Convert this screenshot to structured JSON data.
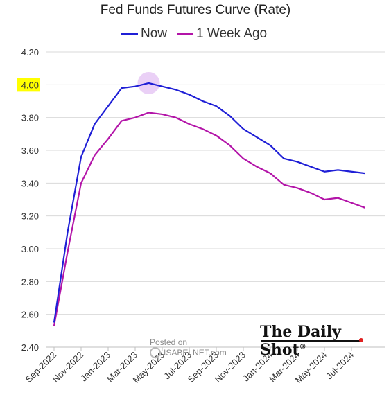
{
  "chart_data": {
    "type": "line",
    "title": "Fed Funds Futures Curve (Rate)",
    "x": [
      "Sep-2022",
      "Oct-2022",
      "Nov-2022",
      "Dec-2022",
      "Jan-2023",
      "Feb-2023",
      "Mar-2023",
      "Apr-2023",
      "May-2023",
      "Jun-2023",
      "Jul-2023",
      "Aug-2023",
      "Sep-2023",
      "Oct-2023",
      "Nov-2023",
      "Dec-2023",
      "Jan-2024",
      "Feb-2024",
      "Mar-2024",
      "Apr-2024",
      "May-2024",
      "Jun-2024",
      "Jul-2024",
      "Aug-2024"
    ],
    "x_tick_labels": [
      "Sep-2022",
      "Nov-2022",
      "Jan-2023",
      "Mar-2023",
      "May-2023",
      "Jul-2023",
      "Sep-2023",
      "Nov-2023",
      "Jan-2024",
      "Mar-2024",
      "May-2024",
      "Jul-2024"
    ],
    "series": [
      {
        "name": "Now",
        "color": "#1f1fd6",
        "values": [
          2.55,
          3.1,
          3.56,
          3.76,
          3.87,
          3.98,
          3.99,
          4.01,
          3.99,
          3.97,
          3.94,
          3.9,
          3.87,
          3.81,
          3.73,
          3.68,
          3.63,
          3.55,
          3.53,
          3.5,
          3.47,
          3.48,
          3.47,
          3.46
        ]
      },
      {
        "name": "1 Week Ago",
        "color": "#b314a8",
        "values": [
          2.53,
          2.98,
          3.4,
          3.57,
          3.67,
          3.78,
          3.8,
          3.83,
          3.82,
          3.8,
          3.76,
          3.73,
          3.69,
          3.63,
          3.55,
          3.5,
          3.46,
          3.39,
          3.37,
          3.34,
          3.3,
          3.31,
          3.28,
          3.25
        ]
      }
    ],
    "y_ticks": [
      "2.40",
      "2.60",
      "2.80",
      "3.00",
      "3.20",
      "3.40",
      "3.60",
      "3.80",
      "4.00",
      "4.20"
    ],
    "ylim": [
      2.4,
      4.2
    ],
    "highlight_tick": "4.00",
    "highlight_tick_color": "#ffff00",
    "peak_marker_color": "#e6c8f5",
    "grid": true,
    "legend_position": "top-center"
  },
  "branding": {
    "logo_text": "The Daily Shot",
    "logo_registered": "®",
    "dot_color": "#e02020",
    "watermark_line1": "Posted on",
    "watermark_line2": "ISABELNET.com"
  }
}
